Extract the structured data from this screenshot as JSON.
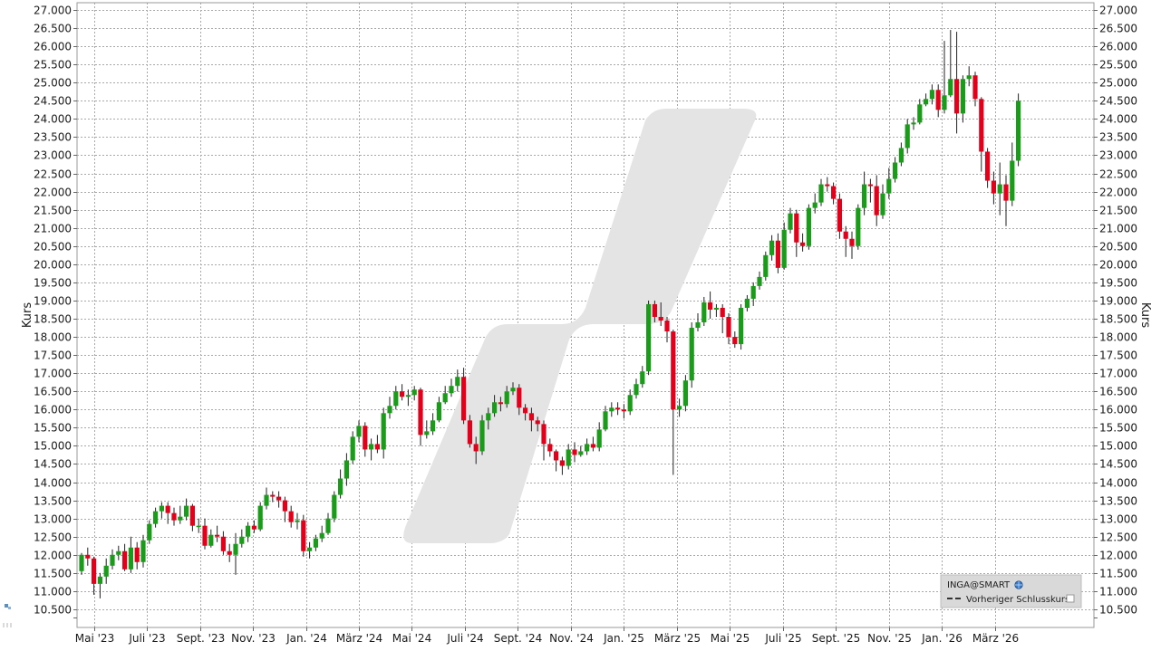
{
  "chart_data": {
    "type": "candlestick",
    "y_axis_label_left": "Kurs",
    "y_axis_label_right": "Kurs",
    "ylim": [
      10000,
      27200
    ],
    "y_ticks": [
      10500,
      11000,
      11500,
      12000,
      12500,
      13000,
      13500,
      14000,
      14500,
      15000,
      15500,
      16000,
      16500,
      17000,
      17500,
      18000,
      18500,
      19000,
      19500,
      20000,
      20500,
      21000,
      21500,
      22000,
      22500,
      23000,
      23500,
      24000,
      24500,
      25000,
      25500,
      26000,
      26500,
      27000
    ],
    "y_tick_labels": [
      "10.500",
      "11.000",
      "11.500",
      "12.000",
      "12.500",
      "13.000",
      "13.500",
      "14.000",
      "14.500",
      "15.000",
      "15.500",
      "16.000",
      "16.500",
      "17.000",
      "17.500",
      "18.000",
      "18.500",
      "19.000",
      "19.500",
      "20.000",
      "20.500",
      "21.000",
      "21.500",
      "22.000",
      "22.500",
      "23.000",
      "23.500",
      "24.000",
      "24.500",
      "25.000",
      "25.500",
      "26.000",
      "26.500",
      "27.000"
    ],
    "x_tick_labels": [
      "Mai '23",
      "Juli '23",
      "Sept. '23",
      "Nov. '23",
      "Jan. '24",
      "März '24",
      "Mai '24",
      "Juli '24",
      "Sept. '24",
      "Nov. '24",
      "Jan. '25",
      "März '25",
      "Mai '25",
      "Juli '25",
      "Sept. '25",
      "Nov. '25",
      "Jan. '26",
      "März '26"
    ],
    "x_tick_index": [
      2,
      10.6,
      19.2,
      27.8,
      36.4,
      45,
      53.6,
      62.2,
      70.8,
      79.4,
      88,
      96.6,
      105.2,
      113.8,
      122.4,
      131,
      139.6,
      148.2
    ],
    "grid": true,
    "up_color": "#1a9c1a",
    "down_color": "#e3001b",
    "watermark_color": "#e4e4e4",
    "legend": {
      "position": "bottom-right",
      "title": "INGA@SMART",
      "items": [
        "Vorheriger Schlusskurs"
      ]
    },
    "candles": [
      [
        11550,
        12000,
        12050,
        11450
      ],
      [
        12000,
        11900,
        12200,
        11700
      ],
      [
        11900,
        11200,
        11950,
        10900
      ],
      [
        11200,
        11400,
        11500,
        10800
      ],
      [
        11400,
        11700,
        11900,
        11200
      ],
      [
        11700,
        12000,
        12150,
        11600
      ],
      [
        12000,
        12100,
        12250,
        11850
      ],
      [
        12100,
        11600,
        12300,
        11550
      ],
      [
        11600,
        12200,
        12500,
        11500
      ],
      [
        12200,
        11800,
        12350,
        11600
      ],
      [
        11800,
        12400,
        12550,
        11650
      ],
      [
        12400,
        12850,
        12950,
        12300
      ],
      [
        12850,
        13200,
        13300,
        12750
      ],
      [
        13200,
        13350,
        13450,
        13000
      ],
      [
        13350,
        13150,
        13450,
        12850
      ],
      [
        13150,
        12950,
        13300,
        12800
      ],
      [
        12950,
        13050,
        13350,
        12850
      ],
      [
        13050,
        13350,
        13550,
        12950
      ],
      [
        13350,
        12800,
        13400,
        12650
      ],
      [
        12800,
        12800,
        13000,
        12600
      ],
      [
        12800,
        12250,
        13000,
        12150
      ],
      [
        12250,
        12550,
        12700,
        12200
      ],
      [
        12550,
        12500,
        12800,
        12350
      ],
      [
        12500,
        12100,
        12650,
        12000
      ],
      [
        12100,
        12000,
        12300,
        11800
      ],
      [
        12000,
        12300,
        12600,
        11450
      ],
      [
        12300,
        12500,
        12700,
        12200
      ],
      [
        12500,
        12800,
        12900,
        12350
      ],
      [
        12800,
        12700,
        12950,
        12600
      ],
      [
        12700,
        13350,
        13450,
        12650
      ],
      [
        13350,
        13650,
        13850,
        13250
      ],
      [
        13650,
        13600,
        13750,
        13450
      ],
      [
        13600,
        13500,
        13750,
        13300
      ],
      [
        13500,
        13200,
        13600,
        12900
      ],
      [
        13200,
        12900,
        13350,
        12750
      ],
      [
        12900,
        12950,
        13150,
        12700
      ],
      [
        12950,
        12100,
        13100,
        11950
      ],
      [
        12100,
        12200,
        12350,
        11900
      ],
      [
        12200,
        12450,
        12550,
        12100
      ],
      [
        12450,
        12600,
        12800,
        12350
      ],
      [
        12600,
        13000,
        13150,
        12550
      ],
      [
        13000,
        13650,
        13750,
        12900
      ],
      [
        13650,
        14100,
        14350,
        13550
      ],
      [
        14100,
        14600,
        14800,
        13900
      ],
      [
        14600,
        15250,
        15400,
        14500
      ],
      [
        15250,
        15550,
        15700,
        15100
      ],
      [
        15550,
        14900,
        15650,
        14700
      ],
      [
        14900,
        15050,
        15200,
        14600
      ],
      [
        15050,
        14900,
        15300,
        14800
      ],
      [
        14900,
        15900,
        16050,
        14650
      ],
      [
        15900,
        16100,
        16350,
        15750
      ],
      [
        16100,
        16500,
        16650,
        16000
      ],
      [
        16500,
        16350,
        16700,
        16250
      ],
      [
        16350,
        16400,
        16550,
        16100
      ],
      [
        16400,
        16550,
        16650,
        16250
      ],
      [
        16550,
        15300,
        16600,
        15000
      ],
      [
        15300,
        15400,
        15700,
        15200
      ],
      [
        15400,
        15700,
        15900,
        15300
      ],
      [
        15700,
        16200,
        16350,
        15650
      ],
      [
        16200,
        16450,
        16650,
        16150
      ],
      [
        16450,
        16650,
        16850,
        16350
      ],
      [
        16650,
        16900,
        17100,
        16500
      ],
      [
        16900,
        15700,
        17150,
        15600
      ],
      [
        15700,
        15050,
        15850,
        14950
      ],
      [
        15050,
        14850,
        15250,
        14500
      ],
      [
        14850,
        15700,
        15850,
        14750
      ],
      [
        15700,
        15900,
        16050,
        15450
      ],
      [
        15900,
        16200,
        16400,
        15800
      ],
      [
        16200,
        16150,
        16350,
        15950
      ],
      [
        16150,
        16500,
        16650,
        16050
      ],
      [
        16500,
        16600,
        16750,
        16400
      ],
      [
        16600,
        16050,
        16700,
        15850
      ],
      [
        16050,
        15900,
        16150,
        15700
      ],
      [
        15900,
        15700,
        16050,
        15400
      ],
      [
        15700,
        15600,
        15800,
        15400
      ],
      [
        15600,
        15050,
        15700,
        14600
      ],
      [
        15050,
        14850,
        15200,
        14700
      ],
      [
        14850,
        14600,
        14900,
        14300
      ],
      [
        14600,
        14450,
        14700,
        14200
      ],
      [
        14450,
        14900,
        15050,
        14350
      ],
      [
        14900,
        14750,
        15100,
        14550
      ],
      [
        14750,
        14850,
        15000,
        14700
      ],
      [
        14850,
        15050,
        15200,
        14750
      ],
      [
        15050,
        14950,
        15250,
        14850
      ],
      [
        14950,
        15450,
        15650,
        14850
      ],
      [
        15450,
        15950,
        16100,
        15400
      ],
      [
        15950,
        16050,
        16200,
        15800
      ],
      [
        16050,
        16000,
        16200,
        15850
      ],
      [
        16000,
        15950,
        16150,
        15750
      ],
      [
        15950,
        16400,
        16550,
        15850
      ],
      [
        16400,
        16700,
        16850,
        16300
      ],
      [
        16700,
        17050,
        17200,
        16600
      ],
      [
        17050,
        18900,
        19000,
        16950
      ],
      [
        18900,
        18550,
        19000,
        18400
      ],
      [
        18550,
        18450,
        18950,
        18300
      ],
      [
        18450,
        18150,
        18550,
        17850
      ],
      [
        18150,
        16000,
        18200,
        14200
      ],
      [
        16000,
        16100,
        16300,
        15800
      ],
      [
        16100,
        16800,
        16950,
        15950
      ],
      [
        16800,
        18250,
        18400,
        16600
      ],
      [
        18250,
        18400,
        18650,
        18150
      ],
      [
        18400,
        18950,
        19100,
        18300
      ],
      [
        18950,
        18750,
        19250,
        18500
      ],
      [
        18750,
        18800,
        18900,
        18550
      ],
      [
        18800,
        18550,
        18900,
        18100
      ],
      [
        18550,
        18000,
        18650,
        17800
      ],
      [
        18000,
        17800,
        18150,
        17700
      ],
      [
        17800,
        18800,
        18900,
        17650
      ],
      [
        18800,
        19050,
        19150,
        18700
      ],
      [
        19050,
        19400,
        19500,
        18850
      ],
      [
        19400,
        19650,
        19800,
        19300
      ],
      [
        19650,
        20250,
        20350,
        19550
      ],
      [
        20250,
        20650,
        20800,
        20100
      ],
      [
        20650,
        19900,
        20850,
        19750
      ],
      [
        19900,
        20950,
        21150,
        19850
      ],
      [
        20950,
        21400,
        21550,
        20850
      ],
      [
        21400,
        20600,
        21500,
        20200
      ],
      [
        20600,
        20500,
        20850,
        20350
      ],
      [
        20500,
        21550,
        21650,
        20400
      ],
      [
        21550,
        21700,
        21950,
        21400
      ],
      [
        21700,
        22200,
        22350,
        21600
      ],
      [
        22200,
        22150,
        22400,
        22000
      ],
      [
        22150,
        21800,
        22250,
        21650
      ],
      [
        21800,
        20900,
        21950,
        20700
      ],
      [
        20900,
        20700,
        21050,
        20200
      ],
      [
        20700,
        20500,
        20900,
        20150
      ],
      [
        20500,
        21550,
        21650,
        20400
      ],
      [
        21550,
        22200,
        22550,
        21350
      ],
      [
        22200,
        22150,
        22350,
        21700
      ],
      [
        22150,
        21350,
        22450,
        21050
      ],
      [
        21350,
        21950,
        22200,
        21250
      ],
      [
        21950,
        22350,
        22650,
        21800
      ],
      [
        22350,
        22800,
        22950,
        22250
      ],
      [
        22800,
        23200,
        23350,
        22700
      ],
      [
        23200,
        23850,
        24000,
        23050
      ],
      [
        23850,
        23900,
        24050,
        23700
      ],
      [
        23900,
        24400,
        24550,
        23850
      ],
      [
        24400,
        24550,
        24700,
        24350
      ],
      [
        24550,
        24800,
        24950,
        24400
      ],
      [
        24800,
        24250,
        24950,
        24050
      ],
      [
        24250,
        24650,
        26150,
        24150
      ],
      [
        24650,
        25100,
        26450,
        24600
      ],
      [
        25100,
        24150,
        26400,
        23600
      ],
      [
        24150,
        25100,
        25200,
        23900
      ],
      [
        25100,
        25200,
        25450,
        24900
      ],
      [
        25200,
        24550,
        25300,
        24350
      ],
      [
        24550,
        23100,
        24600,
        22550
      ],
      [
        23100,
        22300,
        23200,
        22100
      ],
      [
        22300,
        21950,
        22550,
        21650
      ],
      [
        21950,
        22200,
        22800,
        21350
      ],
      [
        22200,
        21750,
        22450,
        21050
      ],
      [
        21750,
        22850,
        23350,
        21600
      ],
      [
        22850,
        24500,
        24700,
        22700
      ]
    ]
  }
}
